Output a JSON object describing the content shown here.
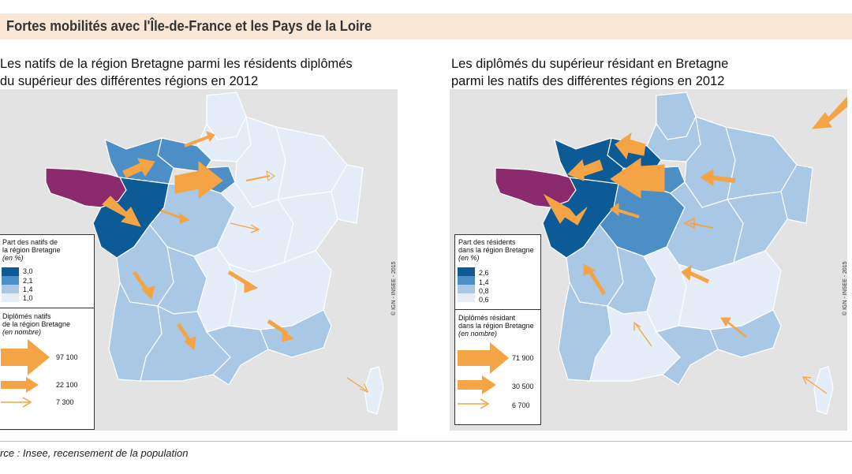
{
  "header": {
    "title": "Fortes mobilités avec l'Île-de-France et les Pays de la Loire"
  },
  "colors": {
    "header_bg": "#fbe7d6",
    "brittany": "#8b2a6c",
    "class_1": "#0c5a96",
    "class_2": "#4c8ec6",
    "class_3": "#a8c8e6",
    "class_4": "#e4edf8",
    "arrow": "#f5a445",
    "background_land": "#e3e3e3"
  },
  "left_map": {
    "title_line1": "Les natifs de la région Bretagne parmi les résidents diplômés",
    "title_line2": "du supérieur des différentes régions en 2012",
    "credit": "© IGN - INSEE - 2015",
    "legend": {
      "share_title_line1": "Part des natifs de",
      "share_title_line2": "la région Bretagne",
      "share_unit": "(en %)",
      "share_values": [
        "3,0",
        "2,1",
        "1,4",
        "1,0"
      ],
      "flow_title_line1": "Diplômés natifs",
      "flow_title_line2": "de la région Bretagne",
      "flow_unit": "(en nombre)",
      "flow_values": [
        "97 100",
        "22 100",
        "7 300"
      ]
    }
  },
  "right_map": {
    "title_line1": "Les diplômés du supérieur résidant en Bretagne",
    "title_line2": "parmi les natifs des différentes régions en 2012",
    "credit": "© IGN - INSEE - 2015",
    "legend": {
      "share_title_line1": "Part des résidents",
      "share_title_line2": "dans la région Bretagne",
      "share_unit": "(en %)",
      "share_values": [
        "2,6",
        "1,4",
        "0,8",
        "0,6"
      ],
      "flow_title_line1": "Diplômés résidant",
      "flow_title_line2": "dans la région Bretagne",
      "flow_unit": "(en nombre)",
      "flow_values": [
        "71 900",
        "30 500",
        "6 700"
      ]
    }
  },
  "source": "rce :  Insee, recensement de la population"
}
